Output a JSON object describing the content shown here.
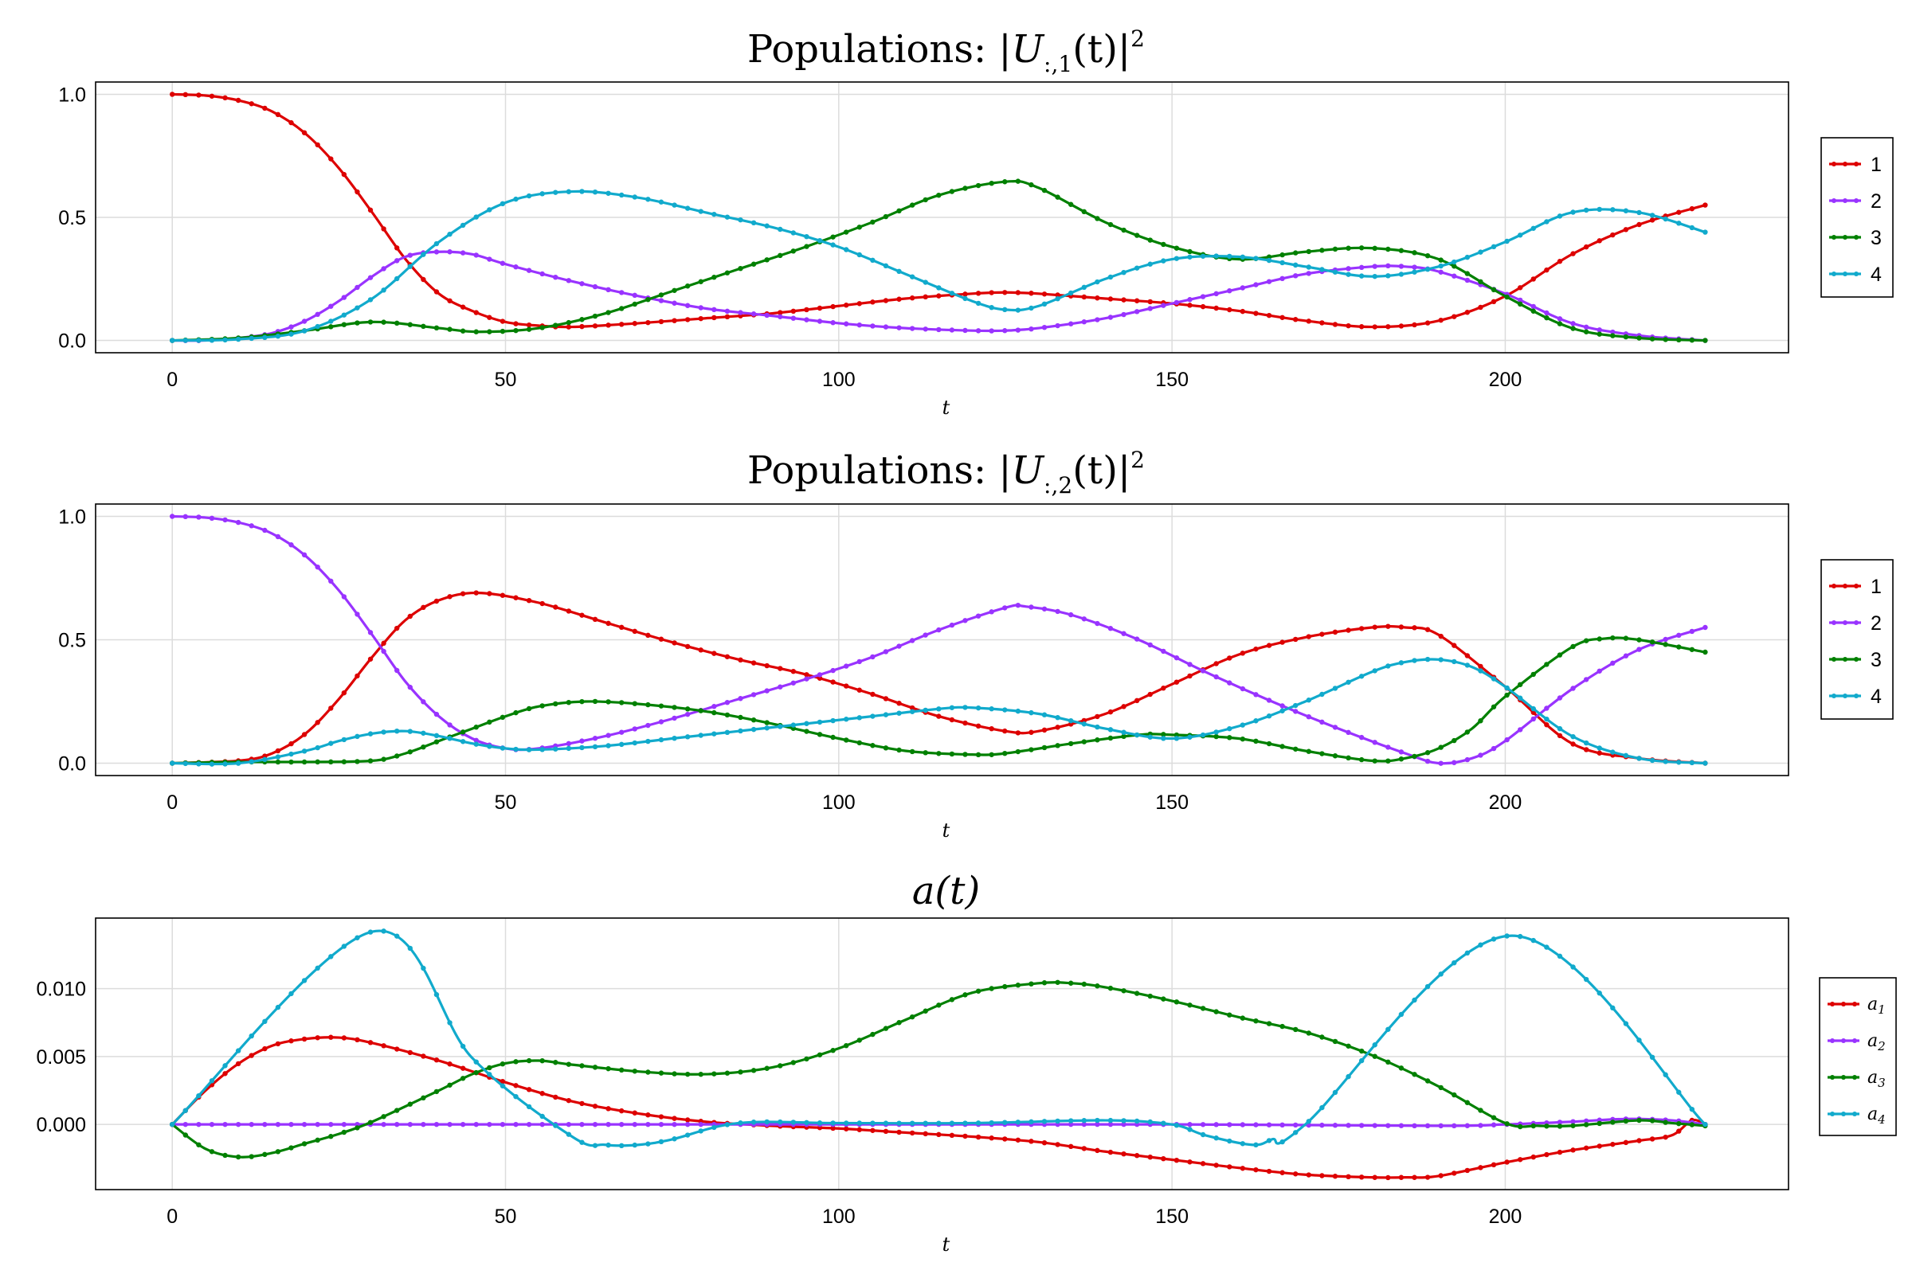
{
  "colors": {
    "c1": "#dd0000",
    "c2": "#9933ff",
    "c3": "#008000",
    "c4": "#11aacc"
  },
  "chart_data": [
    {
      "type": "line",
      "title": "Populations: |U_{:,1}(t)|²",
      "title_parts": {
        "pre": "Populations",
        "colon": ":",
        "bar": "|",
        "U": "U",
        "sub": ":,1",
        "t": "(t)",
        "bar2": "|",
        "sup": "2"
      },
      "xlabel": "t",
      "xlim": [
        -11.5,
        242.5
      ],
      "ylim": [
        -0.05,
        1.05
      ],
      "xticks": [
        0,
        50,
        100,
        150,
        200
      ],
      "xtick_labels": [
        "0",
        "50",
        "100",
        "150",
        "200"
      ],
      "yticks": [
        0.0,
        0.5,
        1.0
      ],
      "ytick_labels": [
        "0.0",
        "0.5",
        "1.0"
      ],
      "grid": true,
      "legend_position": "right",
      "series": [
        {
          "name": "1",
          "color_key": "c1",
          "x": [
            0,
            5,
            10,
            15,
            20,
            25,
            30,
            35,
            40,
            45,
            50,
            55,
            60,
            70,
            80,
            90,
            100,
            110,
            120,
            125,
            130,
            140,
            150,
            160,
            170,
            180,
            190,
            200,
            210,
            220,
            230
          ],
          "y": [
            1.0,
            0.995,
            0.975,
            0.93,
            0.84,
            0.7,
            0.52,
            0.33,
            0.19,
            0.12,
            0.075,
            0.06,
            0.055,
            0.07,
            0.09,
            0.11,
            0.14,
            0.17,
            0.19,
            0.195,
            0.19,
            0.17,
            0.15,
            0.12,
            0.08,
            0.055,
            0.08,
            0.18,
            0.35,
            0.47,
            0.55
          ]
        },
        {
          "name": "2",
          "color_key": "c2",
          "x": [
            0,
            5,
            10,
            15,
            20,
            25,
            30,
            35,
            40,
            45,
            50,
            60,
            70,
            80,
            90,
            100,
            110,
            120,
            125,
            130,
            140,
            150,
            160,
            170,
            180,
            185,
            190,
            200,
            210,
            220,
            230
          ],
          "y": [
            0.0,
            0.0,
            0.01,
            0.03,
            0.08,
            0.16,
            0.26,
            0.34,
            0.36,
            0.35,
            0.31,
            0.24,
            0.18,
            0.13,
            0.1,
            0.07,
            0.05,
            0.04,
            0.04,
            0.05,
            0.09,
            0.15,
            0.21,
            0.27,
            0.3,
            0.3,
            0.28,
            0.19,
            0.07,
            0.02,
            0.0
          ]
        },
        {
          "name": "3",
          "color_key": "c3",
          "x": [
            0,
            10,
            20,
            30,
            40,
            46,
            55,
            65,
            75,
            85,
            95,
            105,
            115,
            125,
            130,
            140,
            150,
            160,
            170,
            180,
            190,
            200,
            210,
            220,
            230
          ],
          "y": [
            0.0,
            0.01,
            0.04,
            0.075,
            0.05,
            0.035,
            0.05,
            0.11,
            0.2,
            0.29,
            0.38,
            0.48,
            0.59,
            0.645,
            0.62,
            0.48,
            0.38,
            0.33,
            0.36,
            0.375,
            0.33,
            0.18,
            0.05,
            0.01,
            0.0
          ]
        },
        {
          "name": "4",
          "color_key": "c4",
          "x": [
            0,
            10,
            20,
            30,
            40,
            50,
            60,
            70,
            80,
            90,
            100,
            110,
            120,
            125,
            130,
            140,
            150,
            160,
            170,
            180,
            190,
            200,
            210,
            220,
            230
          ],
          "y": [
            0.0,
            0.005,
            0.04,
            0.17,
            0.4,
            0.56,
            0.605,
            0.58,
            0.52,
            0.46,
            0.38,
            0.27,
            0.16,
            0.125,
            0.14,
            0.25,
            0.33,
            0.34,
            0.3,
            0.26,
            0.3,
            0.4,
            0.52,
            0.52,
            0.44
          ]
        }
      ]
    },
    {
      "type": "line",
      "title": "Populations: |U_{:,2}(t)|²",
      "title_parts": {
        "pre": "Populations",
        "colon": ":",
        "bar": "|",
        "U": "U",
        "sub": ":,2",
        "t": "(t)",
        "bar2": "|",
        "sup": "2"
      },
      "xlabel": "t",
      "xlim": [
        -11.5,
        242.5
      ],
      "ylim": [
        -0.05,
        1.05
      ],
      "xticks": [
        0,
        50,
        100,
        150,
        200
      ],
      "xtick_labels": [
        "0",
        "50",
        "100",
        "150",
        "200"
      ],
      "yticks": [
        0.0,
        0.5,
        1.0
      ],
      "ytick_labels": [
        "0.0",
        "0.5",
        "1.0"
      ],
      "grid": true,
      "legend_position": "right",
      "series": [
        {
          "name": "1",
          "color_key": "c1",
          "x": [
            0,
            10,
            15,
            20,
            25,
            30,
            35,
            40,
            46,
            55,
            65,
            75,
            85,
            95,
            105,
            115,
            125,
            130,
            140,
            150,
            160,
            170,
            180,
            185,
            190,
            200,
            210,
            220,
            230
          ],
          "y": [
            0.0,
            0.01,
            0.04,
            0.12,
            0.26,
            0.43,
            0.58,
            0.66,
            0.69,
            0.65,
            0.57,
            0.49,
            0.42,
            0.36,
            0.28,
            0.19,
            0.13,
            0.13,
            0.2,
            0.32,
            0.44,
            0.51,
            0.55,
            0.55,
            0.52,
            0.31,
            0.08,
            0.02,
            0.0
          ]
        },
        {
          "name": "2",
          "color_key": "c2",
          "x": [
            0,
            5,
            10,
            15,
            20,
            25,
            30,
            35,
            40,
            45,
            50,
            55,
            65,
            75,
            85,
            95,
            105,
            115,
            125,
            128,
            135,
            145,
            155,
            165,
            175,
            185,
            190,
            195,
            200,
            210,
            220,
            230
          ],
          "y": [
            1.0,
            0.995,
            0.975,
            0.93,
            0.84,
            0.7,
            0.52,
            0.33,
            0.19,
            0.1,
            0.06,
            0.06,
            0.11,
            0.18,
            0.26,
            0.34,
            0.43,
            0.54,
            0.63,
            0.635,
            0.6,
            0.5,
            0.37,
            0.25,
            0.14,
            0.04,
            0.0,
            0.02,
            0.09,
            0.3,
            0.46,
            0.55
          ]
        },
        {
          "name": "3",
          "color_key": "c3",
          "x": [
            0,
            10,
            20,
            30,
            35,
            40,
            45,
            50,
            55,
            62,
            70,
            80,
            90,
            100,
            110,
            120,
            125,
            135,
            145,
            150,
            160,
            170,
            180,
            185,
            190,
            195,
            200,
            210,
            215,
            220,
            230
          ],
          "y": [
            0.0,
            0.005,
            0.005,
            0.01,
            0.04,
            0.09,
            0.14,
            0.19,
            0.23,
            0.25,
            0.24,
            0.21,
            0.16,
            0.1,
            0.05,
            0.035,
            0.04,
            0.08,
            0.115,
            0.115,
            0.1,
            0.05,
            0.01,
            0.02,
            0.06,
            0.14,
            0.27,
            0.47,
            0.505,
            0.5,
            0.45
          ]
        },
        {
          "name": "4",
          "color_key": "c4",
          "x": [
            0,
            10,
            20,
            25,
            30,
            35,
            40,
            45,
            50,
            55,
            65,
            75,
            85,
            95,
            105,
            115,
            120,
            130,
            140,
            150,
            160,
            170,
            180,
            185,
            190,
            195,
            200,
            210,
            220,
            230
          ],
          "y": [
            0.0,
            0.0,
            0.05,
            0.09,
            0.12,
            0.13,
            0.11,
            0.08,
            0.06,
            0.055,
            0.07,
            0.1,
            0.13,
            0.16,
            0.19,
            0.22,
            0.225,
            0.2,
            0.14,
            0.1,
            0.15,
            0.25,
            0.37,
            0.41,
            0.42,
            0.39,
            0.31,
            0.11,
            0.02,
            0.0
          ]
        }
      ]
    },
    {
      "type": "line",
      "title": "a(t)",
      "title_parts": {
        "main": "a(t)"
      },
      "xlabel": "t",
      "xlim": [
        -11.5,
        242.5
      ],
      "ylim": [
        -0.0048,
        0.0152
      ],
      "xticks": [
        0,
        50,
        100,
        150,
        200
      ],
      "xtick_labels": [
        "0",
        "50",
        "100",
        "150",
        "200"
      ],
      "yticks": [
        0.0,
        0.005,
        0.01
      ],
      "ytick_labels": [
        "0.000",
        "0.005",
        "0.010"
      ],
      "grid": true,
      "legend_position": "right",
      "series": [
        {
          "name": "a",
          "sub": "1",
          "color_key": "c1",
          "x": [
            0,
            5,
            10,
            15,
            20,
            25,
            30,
            40,
            50,
            60,
            70,
            80,
            90,
            100,
            110,
            120,
            130,
            140,
            150,
            160,
            170,
            180,
            185,
            190,
            200,
            210,
            220,
            225,
            228,
            230
          ],
          "y": [
            0.0,
            0.0025,
            0.0045,
            0.0058,
            0.0063,
            0.0064,
            0.006,
            0.0047,
            0.0031,
            0.0017,
            0.0008,
            0.0002,
            -0.0001,
            -0.0003,
            -0.0006,
            -0.0009,
            -0.0013,
            -0.002,
            -0.0026,
            -0.0032,
            -0.0037,
            -0.0039,
            -0.0039,
            -0.0038,
            -0.0028,
            -0.0019,
            -0.0012,
            -0.0008,
            0.0003,
            0.0
          ]
        },
        {
          "name": "a",
          "sub": "2",
          "color_key": "c2",
          "x": [
            0,
            50,
            100,
            150,
            190,
            200,
            210,
            218,
            225,
            230
          ],
          "y": [
            0.0,
            0.0,
            0.0,
            0.0,
            -0.0001,
            0.0,
            0.0002,
            0.0004,
            0.0003,
            0.0
          ]
        },
        {
          "name": "a",
          "sub": "3",
          "color_key": "c3",
          "x": [
            0,
            5,
            10,
            15,
            20,
            25,
            30,
            40,
            45,
            50,
            55,
            60,
            70,
            80,
            90,
            100,
            110,
            120,
            130,
            135,
            140,
            150,
            160,
            170,
            180,
            190,
            200,
            205,
            210,
            220,
            225,
            230
          ],
          "y": [
            0.0,
            -0.0018,
            -0.0024,
            -0.0021,
            -0.0014,
            -0.0007,
            0.0002,
            0.0025,
            0.0037,
            0.0045,
            0.0047,
            0.0044,
            0.0039,
            0.0037,
            0.0042,
            0.0056,
            0.0077,
            0.0097,
            0.0104,
            0.0104,
            0.0101,
            0.0091,
            0.0079,
            0.0068,
            0.0051,
            0.0028,
            0.0001,
            -0.0001,
            -0.0001,
            0.0003,
            0.0001,
            -0.0001
          ]
        },
        {
          "name": "a",
          "sub": "4",
          "color_key": "c4",
          "x": [
            0,
            30,
            45,
            60,
            65,
            70,
            75,
            85,
            100,
            120,
            140,
            150,
            155,
            162,
            165,
            170,
            201,
            230
          ],
          "y": [
            0.0,
            0.0142,
            0.0049,
            -0.0009,
            -0.0015,
            -0.0015,
            -0.0011,
            0.0001,
            0.0001,
            0.0001,
            0.0003,
            0.0,
            -0.0008,
            -0.0015,
            -0.0011,
            0.0,
            0.0139,
            0.0
          ]
        }
      ]
    }
  ]
}
